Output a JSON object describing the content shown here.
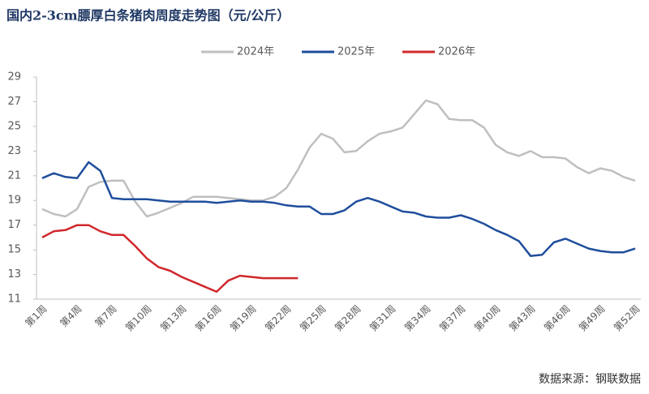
{
  "chart_data": {
    "type": "line",
    "title": "国内2-3cm膘厚白条猪肉周度走势图（元/公斤）",
    "source": "数据来源：钢联数据",
    "categories": [
      "第1周",
      null,
      null,
      "第4周",
      null,
      null,
      "第7周",
      null,
      null,
      "第10周",
      null,
      null,
      "第13周",
      null,
      null,
      "第16周",
      null,
      null,
      "第19周",
      null,
      null,
      "第22周",
      null,
      null,
      "第25周",
      null,
      null,
      "第28周",
      null,
      null,
      "第31周",
      null,
      null,
      "第34周",
      null,
      null,
      "第37周",
      null,
      null,
      "第40周",
      null,
      null,
      "第43周",
      null,
      null,
      "第46周",
      null,
      null,
      "第49周",
      null,
      null,
      "第52周"
    ],
    "series": [
      {
        "name": "2024年",
        "color": "#bfbfbf",
        "values": [
          18.3,
          17.9,
          17.7,
          18.3,
          20.1,
          20.5,
          20.6,
          20.6,
          18.9,
          17.7,
          18.0,
          18.4,
          18.8,
          19.3,
          19.3,
          19.3,
          19.2,
          19.1,
          19.0,
          19.0,
          19.3,
          20.0,
          21.5,
          23.3,
          24.4,
          24.0,
          22.9,
          23.0,
          23.8,
          24.4,
          24.6,
          24.9,
          26.0,
          27.1,
          26.8,
          25.6,
          25.5,
          25.5,
          24.9,
          23.5,
          22.9,
          22.6,
          23.0,
          22.5,
          22.5,
          22.4,
          21.7,
          21.2,
          21.6,
          21.4,
          20.9,
          20.6
        ]
      },
      {
        "name": "2025年",
        "color": "#1f4e9c",
        "values": [
          20.8,
          21.2,
          20.9,
          20.8,
          22.1,
          21.4,
          19.2,
          19.1,
          19.1,
          19.1,
          19.0,
          18.9,
          18.9,
          18.9,
          18.9,
          18.8,
          18.9,
          19.0,
          18.9,
          18.9,
          18.8,
          18.6,
          18.5,
          18.5,
          17.9,
          17.9,
          18.2,
          18.9,
          19.2,
          18.9,
          18.5,
          18.1,
          18.0,
          17.7,
          17.6,
          17.6,
          17.8,
          17.5,
          17.1,
          16.6,
          16.2,
          15.7,
          14.5,
          14.6,
          15.6,
          15.9,
          15.5,
          15.1,
          14.9,
          14.8,
          14.8,
          15.1
        ]
      },
      {
        "name": "2026年",
        "color": "#d0282c",
        "values": [
          16.0,
          16.5,
          16.6,
          17.0,
          17.0,
          16.5,
          16.2,
          16.2,
          15.3,
          14.3,
          13.6,
          13.3,
          12.8,
          12.4,
          12.0,
          11.6,
          12.5,
          12.9,
          12.8,
          12.7,
          12.7,
          12.7,
          12.7,
          null,
          null,
          null,
          null,
          null,
          null,
          null,
          null,
          null,
          null,
          null,
          null,
          null,
          null,
          null,
          null,
          null,
          null,
          null,
          null,
          null,
          null,
          null,
          null,
          null,
          null,
          null,
          null,
          null
        ]
      }
    ],
    "ylim": [
      11,
      29
    ],
    "yticks": [
      11,
      13,
      15,
      17,
      19,
      21,
      23,
      25,
      27,
      29
    ]
  }
}
